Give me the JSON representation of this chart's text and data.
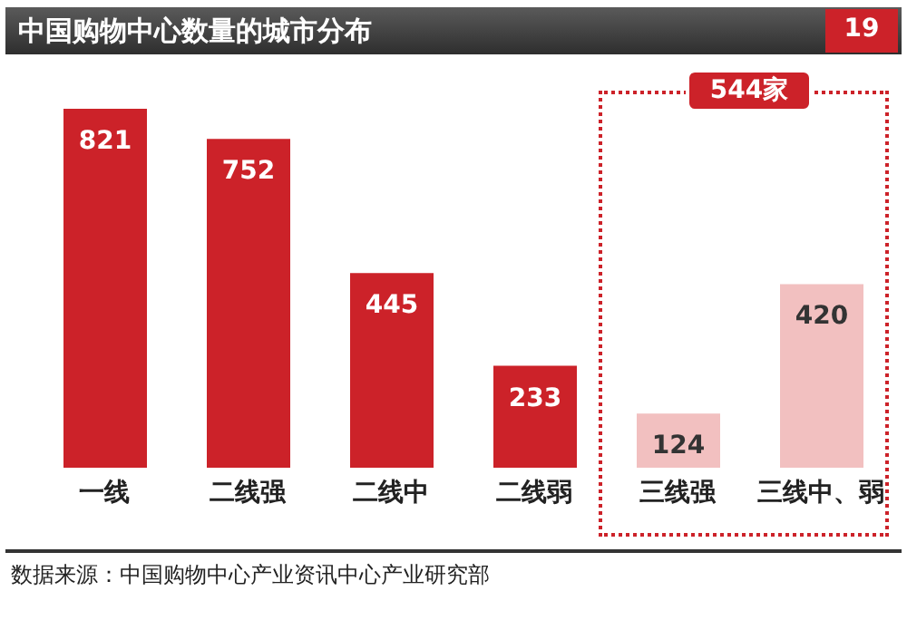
{
  "chart_data": {
    "type": "bar",
    "title": "中国购物中心数量的城市分布",
    "categories": [
      "一线",
      "二线强",
      "二线中",
      "二线弱",
      "三线强",
      "三线中、弱"
    ],
    "values": [
      821,
      752,
      445,
      233,
      124,
      420
    ],
    "colors": [
      "#cc2229",
      "#cc2229",
      "#cc2229",
      "#cc2229",
      "#f2c0c0",
      "#f2c0c0"
    ],
    "data_labels": true,
    "grid": false,
    "legend": false,
    "tick_labels": "x",
    "annotations": [
      "19",
      "544家",
      "数据来源：中国购物中心产业资讯中心产业研究部"
    ]
  }
}
